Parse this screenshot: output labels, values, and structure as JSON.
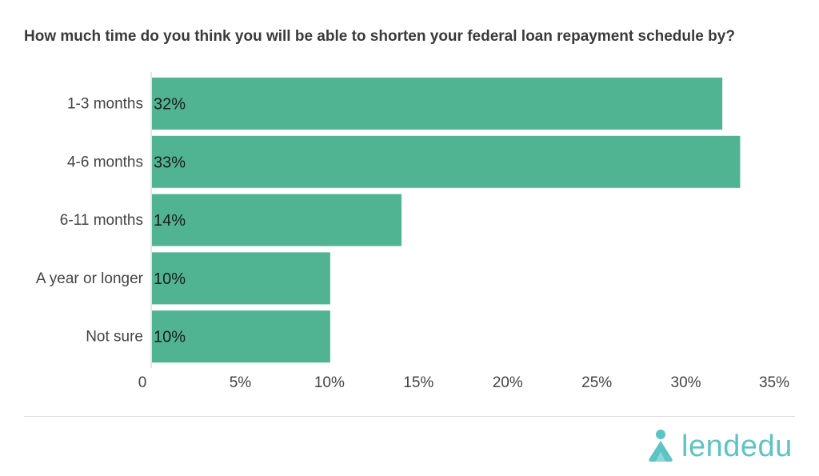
{
  "title": "How much time do you think you will be able to shorten your federal loan repayment schedule by?",
  "logo": {
    "text": "lendedu",
    "icon": "lendedu-logo-icon"
  },
  "colors": {
    "bar": "#50b492",
    "axis": "#cccccc",
    "divider": "#dcdcdc",
    "logo": "#5ec3c4"
  },
  "chart_data": {
    "type": "bar",
    "orientation": "horizontal",
    "title": "How much time do you think you will be able to shorten your federal loan repayment schedule by?",
    "categories": [
      "1-3 months",
      "4-6 months",
      "6-11 months",
      "A year or longer",
      "Not sure"
    ],
    "values": [
      32,
      33,
      14,
      10,
      10
    ],
    "value_labels": [
      "32%",
      "33%",
      "14%",
      "10%",
      "10%"
    ],
    "xlim": [
      0,
      35
    ],
    "x_ticks": [
      0,
      5,
      10,
      15,
      20,
      25,
      30,
      35
    ],
    "x_tick_labels": [
      "0",
      "5%",
      "10%",
      "15%",
      "20%",
      "25%",
      "30%",
      "35%"
    ],
    "grid": false,
    "legend": "none"
  }
}
